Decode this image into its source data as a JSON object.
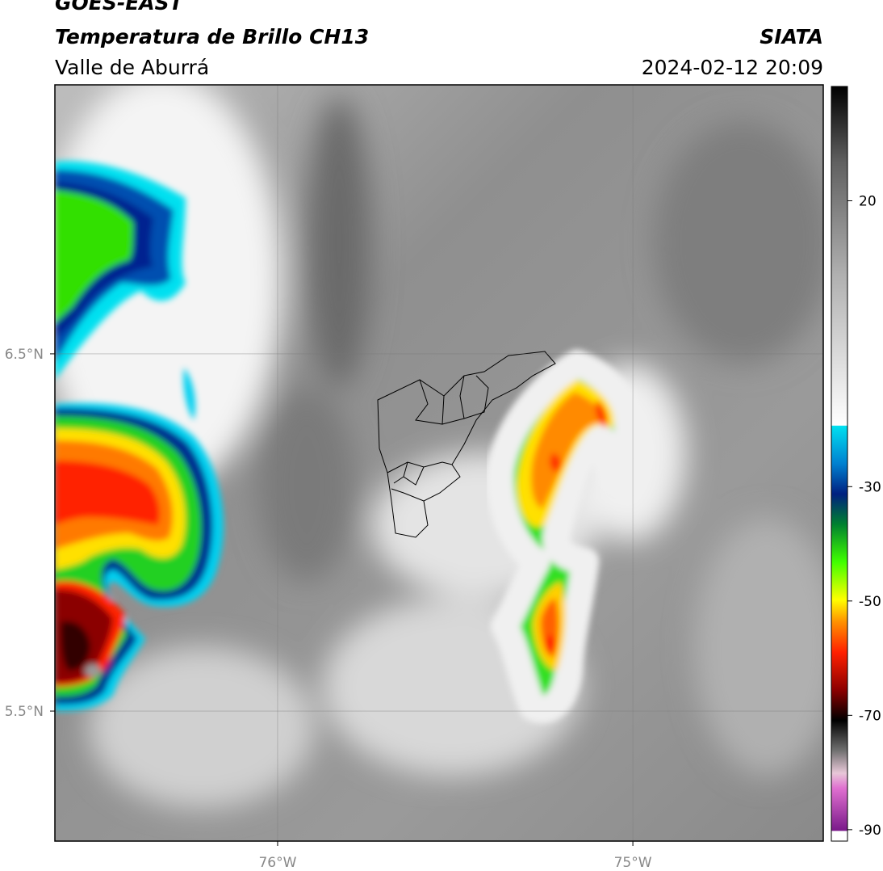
{
  "header": {
    "satellite": "GOES-EAST",
    "product": "Temperatura de Brillo CH13",
    "region": "Valle de Aburrá",
    "source": "SIATA",
    "datetime": "2024-02-12 20:09"
  },
  "map": {
    "xlim": [
      -76.627,
      -74.464
    ],
    "ylim": [
      5.136,
      7.253
    ],
    "xticks": [
      {
        "value": -76,
        "label": "76°W"
      },
      {
        "value": -75,
        "label": "75°W"
      }
    ],
    "yticks": [
      {
        "value": 5.5,
        "label": "5.5°N"
      },
      {
        "value": 6.5,
        "label": "6.5°N"
      }
    ],
    "grid": true
  },
  "colorbar": {
    "lim": [
      -92,
      40
    ],
    "ticks": [
      -90,
      -70,
      -50,
      -30,
      20
    ]
  }
}
